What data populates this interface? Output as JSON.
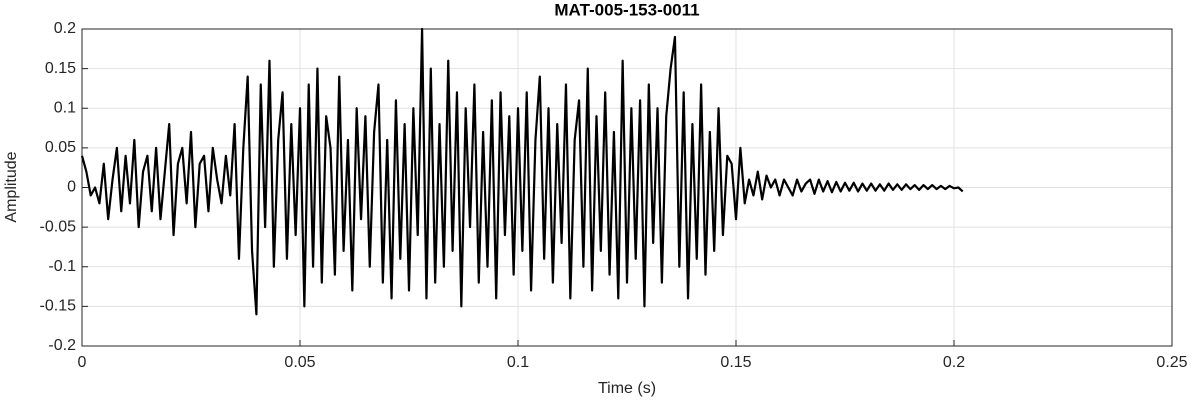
{
  "chart_data": {
    "type": "line",
    "title": "MAT-005-153-0011",
    "xlabel": "Time (s)",
    "ylabel": "Amplitude",
    "xlim": [
      0,
      0.25
    ],
    "ylim": [
      -0.2,
      0.2
    ],
    "xticks": [
      0,
      0.05,
      0.1,
      0.15,
      0.2,
      0.25
    ],
    "yticks": [
      -0.2,
      -0.15,
      -0.1,
      -0.05,
      0,
      0.05,
      0.1,
      0.15,
      0.2
    ],
    "grid": true,
    "color": "#000000",
    "x": [
      0,
      0.001,
      0.002,
      0.003,
      0.004,
      0.005,
      0.006,
      0.007,
      0.008,
      0.009,
      0.01,
      0.011,
      0.012,
      0.013,
      0.014,
      0.015,
      0.016,
      0.017,
      0.018,
      0.019,
      0.02,
      0.021,
      0.022,
      0.023,
      0.024,
      0.025,
      0.026,
      0.027,
      0.028,
      0.029,
      0.03,
      0.031,
      0.032,
      0.033,
      0.034,
      0.035,
      0.036,
      0.037,
      0.038,
      0.039,
      0.04,
      0.041,
      0.042,
      0.043,
      0.044,
      0.045,
      0.046,
      0.047,
      0.048,
      0.049,
      0.05,
      0.051,
      0.052,
      0.053,
      0.054,
      0.055,
      0.056,
      0.057,
      0.058,
      0.059,
      0.06,
      0.061,
      0.062,
      0.063,
      0.064,
      0.065,
      0.066,
      0.067,
      0.068,
      0.069,
      0.07,
      0.071,
      0.072,
      0.073,
      0.074,
      0.075,
      0.076,
      0.077,
      0.078,
      0.079,
      0.08,
      0.081,
      0.082,
      0.083,
      0.084,
      0.085,
      0.086,
      0.087,
      0.088,
      0.089,
      0.09,
      0.091,
      0.092,
      0.093,
      0.094,
      0.095,
      0.096,
      0.097,
      0.098,
      0.099,
      0.1,
      0.101,
      0.102,
      0.103,
      0.104,
      0.105,
      0.106,
      0.107,
      0.108,
      0.109,
      0.11,
      0.111,
      0.112,
      0.113,
      0.114,
      0.115,
      0.116,
      0.117,
      0.118,
      0.119,
      0.12,
      0.121,
      0.122,
      0.123,
      0.124,
      0.125,
      0.126,
      0.127,
      0.128,
      0.129,
      0.13,
      0.131,
      0.132,
      0.133,
      0.134,
      0.135,
      0.136,
      0.137,
      0.138,
      0.139,
      0.14,
      0.141,
      0.142,
      0.143,
      0.144,
      0.145,
      0.146,
      0.147,
      0.148,
      0.149,
      0.15,
      0.151,
      0.152,
      0.153,
      0.154,
      0.155,
      0.156,
      0.157,
      0.158,
      0.159,
      0.16,
      0.161,
      0.162,
      0.163,
      0.164,
      0.165,
      0.166,
      0.167,
      0.168,
      0.169,
      0.17,
      0.171,
      0.172,
      0.173,
      0.174,
      0.175,
      0.176,
      0.177,
      0.178,
      0.179,
      0.18,
      0.181,
      0.182,
      0.183,
      0.184,
      0.185,
      0.186,
      0.187,
      0.188,
      0.189,
      0.19,
      0.191,
      0.192,
      0.193,
      0.194,
      0.195,
      0.196,
      0.197,
      0.198,
      0.199,
      0.2,
      0.201,
      0.202
    ],
    "values": [
      0.04,
      0.02,
      -0.01,
      0.0,
      -0.02,
      0.03,
      -0.04,
      0.01,
      0.05,
      -0.03,
      0.04,
      -0.02,
      0.06,
      -0.05,
      0.02,
      0.04,
      -0.03,
      0.05,
      -0.04,
      0.02,
      0.08,
      -0.06,
      0.03,
      0.05,
      -0.02,
      0.07,
      -0.05,
      0.03,
      0.04,
      -0.03,
      0.05,
      0.01,
      -0.02,
      0.04,
      -0.01,
      0.08,
      -0.09,
      0.05,
      0.14,
      -0.08,
      -0.16,
      0.13,
      -0.05,
      0.16,
      -0.1,
      0.06,
      0.12,
      -0.09,
      0.08,
      -0.06,
      0.1,
      -0.15,
      0.13,
      -0.1,
      0.15,
      -0.12,
      0.09,
      0.05,
      -0.11,
      0.14,
      -0.08,
      0.06,
      -0.13,
      0.1,
      -0.04,
      0.09,
      -0.1,
      0.07,
      0.13,
      -0.12,
      0.06,
      -0.14,
      0.11,
      -0.09,
      0.08,
      -0.13,
      0.1,
      -0.06,
      0.2,
      -0.14,
      0.15,
      -0.12,
      0.08,
      -0.1,
      0.16,
      -0.08,
      0.12,
      -0.15,
      0.1,
      -0.05,
      0.13,
      -0.12,
      0.07,
      -0.1,
      0.11,
      -0.14,
      0.12,
      -0.06,
      0.09,
      -0.11,
      0.1,
      -0.08,
      0.12,
      -0.13,
      0.06,
      0.14,
      -0.09,
      0.1,
      -0.12,
      0.08,
      -0.07,
      0.13,
      -0.14,
      0.06,
      0.11,
      -0.1,
      0.15,
      -0.13,
      0.09,
      -0.08,
      0.12,
      -0.11,
      0.07,
      -0.14,
      0.16,
      -0.12,
      0.1,
      -0.09,
      0.11,
      -0.15,
      0.13,
      -0.07,
      0.1,
      -0.12,
      0.09,
      0.15,
      0.19,
      -0.1,
      0.12,
      -0.14,
      0.08,
      -0.09,
      0.13,
      -0.11,
      0.07,
      -0.08,
      0.1,
      -0.06,
      0.04,
      0.03,
      -0.04,
      0.05,
      -0.02,
      0.01,
      -0.01,
      0.02,
      -0.015,
      0.015,
      0.0,
      0.01,
      -0.01,
      0.01,
      0.0,
      -0.01,
      0.01,
      -0.005,
      0.005,
      0.01,
      -0.008,
      0.01,
      -0.005,
      0.008,
      -0.006,
      0.007,
      -0.005,
      0.006,
      -0.004,
      0.006,
      -0.005,
      0.005,
      -0.004,
      0.005,
      -0.004,
      0.004,
      -0.004,
      0.005,
      -0.003,
      0.004,
      -0.003,
      0.004,
      -0.002,
      0.003,
      -0.003,
      0.003,
      -0.002,
      0.003,
      -0.002,
      0.002,
      -0.002,
      0.002,
      -0.001,
      0.0,
      -0.005
    ]
  }
}
